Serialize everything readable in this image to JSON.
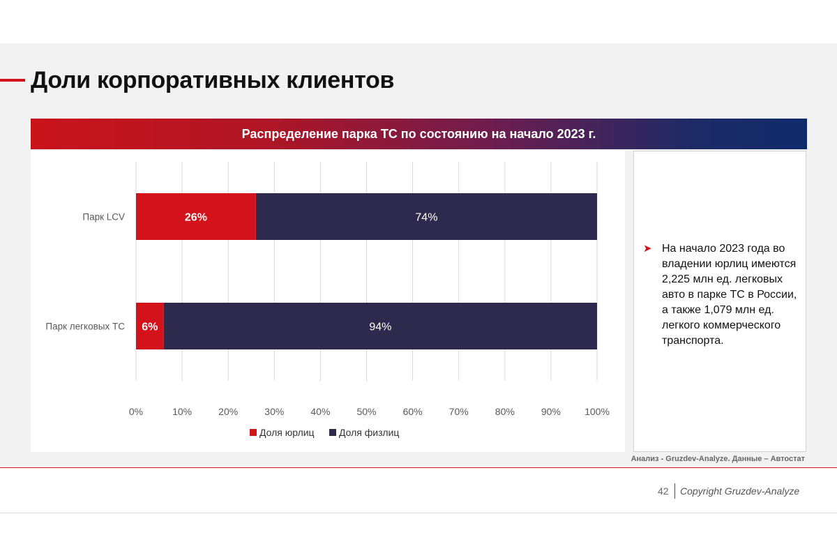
{
  "page": {
    "title": "Доли корпоративных клиентов",
    "banner": "Распределение парка ТС по состоянию на начало 2023 г.",
    "note": "На начало 2023 года во владении юрлиц имеются 2,225 млн ед. легковых авто в парке ТС в России, а также 1,079 млн ед. легкого коммерческого транспорта.",
    "note_bullet_icon": "arrow-bullet-icon",
    "source": "Анализ - Gruzdev-Analyze. Данные – Автостат",
    "page_number": "42",
    "copyright": "Copyright Gruzdev-Analyze"
  },
  "colors": {
    "accent": "#d3121b",
    "legal_entities": "#d3121b",
    "individuals": "#2e2a4e",
    "grid": "#d9d9d9"
  },
  "chart_data": {
    "type": "bar",
    "orientation": "horizontal",
    "stacked": true,
    "percent_stacked": true,
    "categories": [
      "Парк LCV",
      "Парк легковых ТС"
    ],
    "series": [
      {
        "name": "Доля юрлиц",
        "values": [
          26,
          6
        ],
        "labels": [
          "26%",
          "6%"
        ]
      },
      {
        "name": "Доля физлиц",
        "values": [
          74,
          94
        ],
        "labels": [
          "74%",
          "94%"
        ]
      }
    ],
    "x_ticks": [
      "0%",
      "10%",
      "20%",
      "30%",
      "40%",
      "50%",
      "60%",
      "70%",
      "80%",
      "90%",
      "100%"
    ],
    "xlim": [
      0,
      100
    ],
    "grid": true,
    "legend_position": "bottom"
  }
}
